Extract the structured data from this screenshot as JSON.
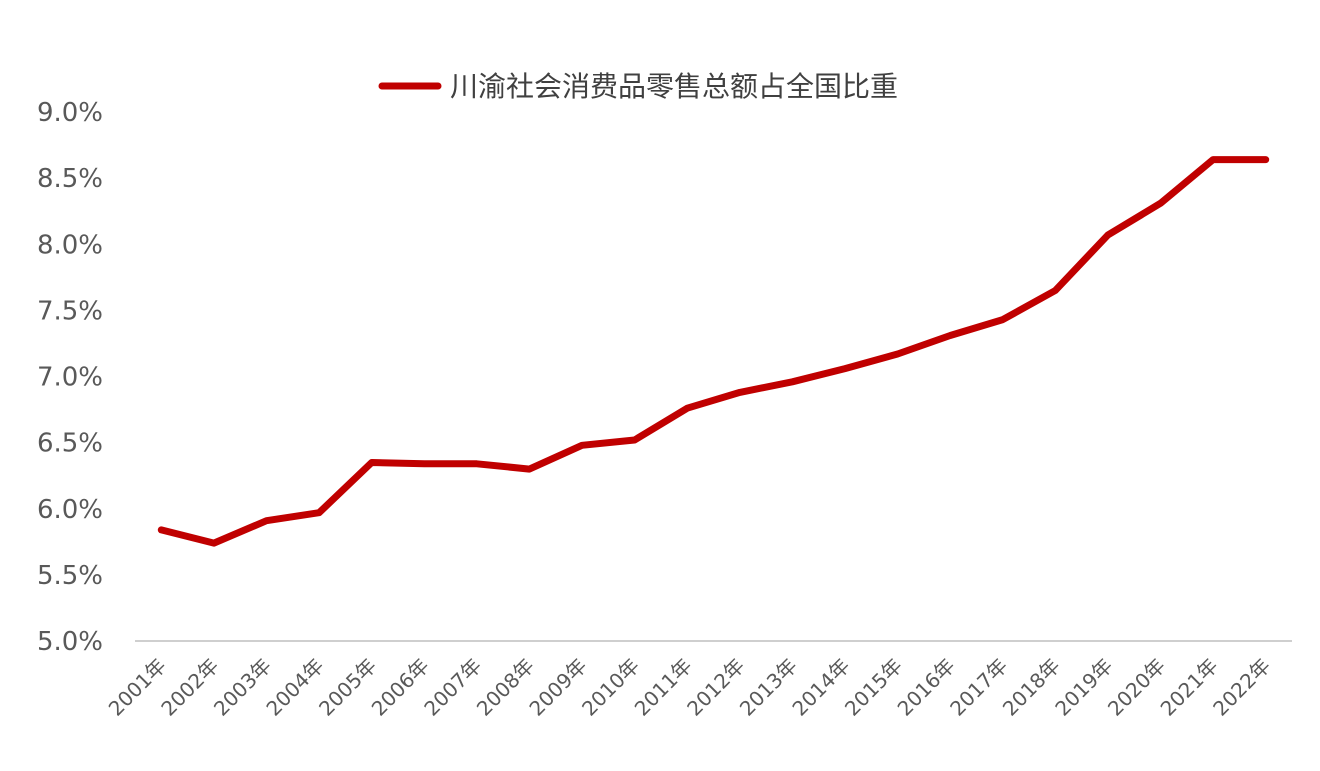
{
  "chart_data": {
    "type": "line",
    "title": "",
    "xlabel": "",
    "ylabel": "",
    "categories": [
      "2001年",
      "2002年",
      "2003年",
      "2004年",
      "2005年",
      "2006年",
      "2007年",
      "2008年",
      "2009年",
      "2010年",
      "2011年",
      "2012年",
      "2013年",
      "2014年",
      "2015年",
      "2016年",
      "2017年",
      "2018年",
      "2019年",
      "2020年",
      "2021年",
      "2022年"
    ],
    "series": [
      {
        "name": "川渝社会消费品零售总额占全国比重",
        "color": "#C00000",
        "values": [
          5.84,
          5.74,
          5.91,
          5.97,
          6.35,
          6.34,
          6.34,
          6.3,
          6.48,
          6.52,
          6.76,
          6.88,
          6.96,
          7.06,
          7.17,
          7.31,
          7.43,
          7.65,
          8.07,
          8.31,
          8.64,
          8.64
        ]
      }
    ],
    "ylim": [
      5.0,
      9.0
    ],
    "ytick_labels": [
      "5.0%",
      "5.5%",
      "6.0%",
      "6.5%",
      "7.0%",
      "7.5%",
      "8.0%",
      "8.5%",
      "9.0%"
    ],
    "grid": false,
    "legend_position": "top",
    "axis_color": "#BFBFBF"
  }
}
